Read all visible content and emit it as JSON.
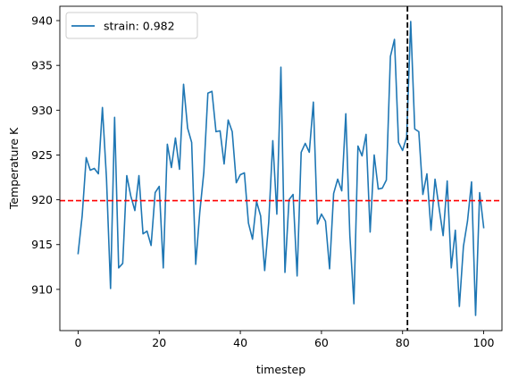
{
  "chart_data": {
    "type": "line",
    "xlabel": "timestep",
    "ylabel": "Temperature K",
    "xlim": [
      -4.5,
      104.5
    ],
    "ylim": [
      905.4,
      941.6
    ],
    "xticks": [
      0,
      20,
      40,
      60,
      80,
      100
    ],
    "yticks": [
      910,
      915,
      920,
      925,
      930,
      935,
      940
    ],
    "grid": false,
    "legend_position": "upper left",
    "series": [
      {
        "name": "strain: 0.982",
        "color": "#1f77b4",
        "x": [
          0,
          1,
          2,
          3,
          4,
          5,
          6,
          7,
          8,
          9,
          10,
          11,
          12,
          13,
          14,
          15,
          16,
          17,
          18,
          19,
          20,
          21,
          22,
          23,
          24,
          25,
          26,
          27,
          28,
          29,
          30,
          31,
          32,
          33,
          34,
          35,
          36,
          37,
          38,
          39,
          40,
          41,
          42,
          43,
          44,
          45,
          46,
          47,
          48,
          49,
          50,
          51,
          52,
          53,
          54,
          55,
          56,
          57,
          58,
          59,
          60,
          61,
          62,
          63,
          64,
          65,
          66,
          67,
          68,
          69,
          70,
          71,
          72,
          73,
          74,
          75,
          76,
          77,
          78,
          79,
          80,
          81,
          82,
          83,
          84,
          85,
          86,
          87,
          88,
          89,
          90,
          91,
          92,
          93,
          94,
          95,
          96,
          97,
          98,
          99,
          100
        ],
        "y": [
          914.0,
          918.2,
          924.7,
          923.3,
          923.5,
          922.9,
          930.3,
          922.4,
          910.1,
          929.2,
          912.4,
          912.9,
          922.7,
          920.4,
          918.8,
          922.7,
          916.2,
          916.5,
          914.9,
          920.8,
          921.5,
          912.4,
          926.2,
          923.6,
          926.9,
          923.4,
          932.9,
          928.0,
          926.4,
          912.8,
          918.6,
          923.1,
          931.9,
          932.1,
          927.6,
          927.7,
          924.0,
          928.9,
          927.6,
          921.9,
          922.8,
          923.0,
          917.4,
          915.6,
          919.8,
          918.2,
          912.1,
          917.5,
          926.6,
          918.4,
          934.8,
          911.9,
          920.0,
          920.6,
          911.5,
          925.3,
          926.3,
          925.3,
          930.9,
          917.3,
          918.4,
          917.6,
          912.3,
          920.7,
          922.3,
          921.0,
          929.6,
          916.0,
          908.4,
          926.0,
          924.9,
          927.3,
          916.4,
          925.0,
          921.2,
          921.3,
          922.2,
          936.0,
          937.9,
          926.4,
          925.5,
          927.0,
          939.9,
          927.9,
          927.6,
          920.6,
          922.9,
          916.6,
          922.3,
          919.1,
          916.0,
          922.1,
          912.4,
          916.6,
          908.1,
          914.8,
          917.6,
          922.0,
          907.1,
          920.8,
          916.9
        ]
      }
    ],
    "hlines": [
      {
        "y": 919.9,
        "color": "#ff0000",
        "style": "dashed"
      }
    ],
    "vlines": [
      {
        "x": 81.2,
        "color": "#000000",
        "style": "dashed"
      }
    ]
  }
}
